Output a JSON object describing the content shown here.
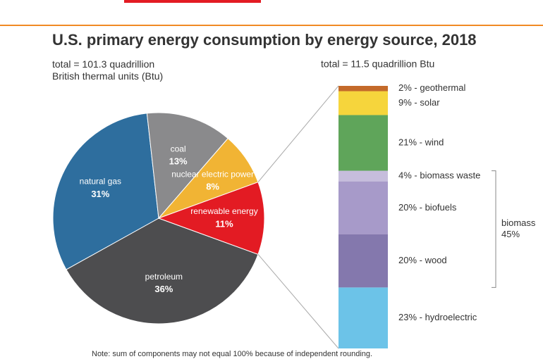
{
  "chart_data": [
    {
      "type": "pie",
      "title": "U.S. primary energy consumption by energy source, 2018",
      "subtitle": "total = 101.3 quadrillion British thermal units (Btu)",
      "categories": [
        "petroleum",
        "natural gas",
        "coal",
        "nuclear electric power",
        "renewable energy"
      ],
      "values": [
        36,
        31,
        13,
        8,
        11
      ],
      "value_labels": [
        "36%",
        "31%",
        "13%",
        "8%",
        "11%"
      ],
      "colors": [
        "#4d4d4f",
        "#2e6e9e",
        "#8a8a8c",
        "#f1b434",
        "#e31b23"
      ],
      "note": "Note: sum of components may not equal 100% because of independent rounding."
    },
    {
      "type": "stacked-bar",
      "subtitle": "total = 11.5 quadrillion Btu",
      "labels": [
        "23% - hydroelectric",
        "20% - wood",
        "20% - biofuels",
        "4% - biomass waste",
        "21% - wind",
        "9% - solar",
        "2% - geothermal"
      ],
      "values": [
        23,
        20,
        20,
        4,
        21,
        9,
        2
      ],
      "colors": [
        "#6cc3e8",
        "#8478ad",
        "#a79ac9",
        "#c6bddc",
        "#5fa55a",
        "#f6d53c",
        "#c46a2a"
      ],
      "group": {
        "label": "biomass",
        "value": 45,
        "value_label": "45%"
      }
    }
  ]
}
